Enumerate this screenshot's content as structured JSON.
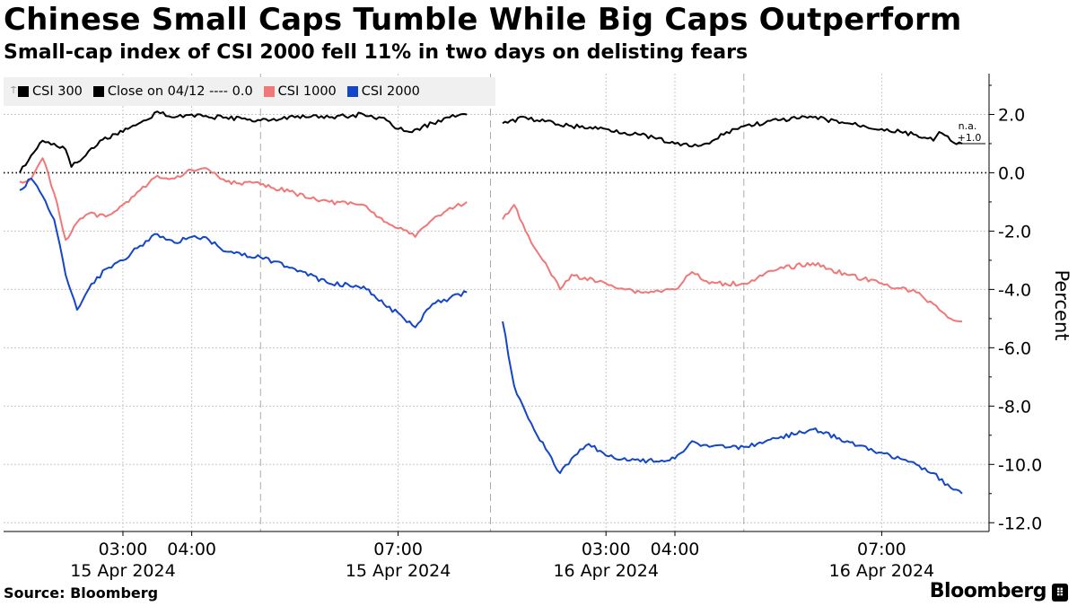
{
  "title": "Chinese Small Caps Tumble While Big Caps Outperform",
  "subtitle": "Small-cap index of CSI 2000 fell 11% in two days on delisting fears",
  "source": "Source: Bloomberg",
  "brand": "Bloomberg",
  "legend": {
    "csi300": "CSI 300",
    "close": "Close on 04/12 ---- 0.0",
    "csi1000": "CSI 1000",
    "csi2000": "CSI 2000"
  },
  "colors": {
    "csi300": "#000000",
    "csi1000": "#f07878",
    "csi2000": "#1446c8",
    "grid": "#c8c8c8",
    "legend_bg": "#f0f0f0"
  },
  "chart_data": {
    "type": "line",
    "ylabel": "Percent",
    "ylim": [
      -12.3,
      3.4
    ],
    "yticks": [
      2.0,
      0.0,
      -2.0,
      -4.0,
      -6.0,
      -8.0,
      -10.0,
      -12.0
    ],
    "ytick_labels": [
      "2.0",
      "0.0",
      "-2.0",
      "-4.0",
      "-6.0",
      "-8.0",
      "-10.0",
      "-12.0"
    ],
    "reference_line": {
      "label": "Close on 04/12",
      "value": 0.0
    },
    "x_labels": [
      {
        "time": "03:00",
        "date": "15 Apr 2024",
        "x": "2024-04-15 03:00"
      },
      {
        "time": "04:00",
        "date": "",
        "x": "2024-04-15 04:00"
      },
      {
        "time": "07:00",
        "date": "15 Apr 2024",
        "x": "2024-04-15 07:00"
      },
      {
        "time": "03:00",
        "date": "16 Apr 2024",
        "x": "2024-04-16 03:00"
      },
      {
        "time": "04:00",
        "date": "",
        "x": "2024-04-16 04:00"
      },
      {
        "time": "07:00",
        "date": "16 Apr 2024",
        "x": "2024-04-16 07:00"
      }
    ],
    "last_value_labels": [
      {
        "series": "CSI 300",
        "text": "n.a."
      },
      {
        "series": "CSI 300",
        "text": "+1.0"
      }
    ],
    "series": [
      {
        "name": "CSI 300",
        "color": "#000000",
        "sessions": [
          [
            [
              "2024-04-15 01:30",
              0.0
            ],
            [
              "2024-04-15 01:40",
              0.6
            ],
            [
              "2024-04-15 01:50",
              1.1
            ],
            [
              "2024-04-15 02:00",
              1.0
            ],
            [
              "2024-04-15 02:10",
              0.8
            ],
            [
              "2024-04-15 02:15",
              0.2
            ],
            [
              "2024-04-15 02:25",
              0.5
            ],
            [
              "2024-04-15 02:40",
              1.1
            ],
            [
              "2024-04-15 03:00",
              1.4
            ],
            [
              "2024-04-15 03:20",
              1.8
            ],
            [
              "2024-04-15 03:30",
              2.1
            ],
            [
              "2024-04-15 03:45",
              1.9
            ],
            [
              "2024-04-15 04:00",
              2.0
            ],
            [
              "2024-04-15 04:15",
              1.9
            ],
            [
              "2024-04-15 04:30",
              1.9
            ],
            [
              "2024-04-15 05:00",
              1.8
            ],
            [
              "2024-04-15 05:30",
              1.9
            ],
            [
              "2024-04-15 06:00",
              1.9
            ],
            [
              "2024-04-15 06:30",
              2.0
            ],
            [
              "2024-04-15 06:50",
              1.8
            ],
            [
              "2024-04-15 07:00",
              1.5
            ],
            [
              "2024-04-15 07:10",
              1.4
            ],
            [
              "2024-04-15 07:30",
              1.7
            ],
            [
              "2024-04-15 07:45",
              1.9
            ],
            [
              "2024-04-15 08:00",
              2.0
            ]
          ],
          [
            [
              "2024-04-16 01:30",
              1.7
            ],
            [
              "2024-04-16 01:50",
              1.9
            ],
            [
              "2024-04-16 02:00",
              1.8
            ],
            [
              "2024-04-16 02:30",
              1.6
            ],
            [
              "2024-04-16 03:00",
              1.5
            ],
            [
              "2024-04-16 03:30",
              1.3
            ],
            [
              "2024-04-16 04:00",
              1.0
            ],
            [
              "2024-04-16 04:15",
              0.9
            ],
            [
              "2024-04-16 04:30",
              1.0
            ],
            [
              "2024-04-16 04:45",
              1.4
            ],
            [
              "2024-04-16 05:00",
              1.6
            ],
            [
              "2024-04-16 05:30",
              1.8
            ],
            [
              "2024-04-16 06:00",
              1.9
            ],
            [
              "2024-04-16 06:30",
              1.7
            ],
            [
              "2024-04-16 07:00",
              1.5
            ],
            [
              "2024-04-16 07:30",
              1.3
            ],
            [
              "2024-04-16 07:45",
              1.1
            ],
            [
              "2024-04-16 07:50",
              1.4
            ],
            [
              "2024-04-16 08:00",
              1.1
            ],
            [
              "2024-04-16 08:10",
              1.0
            ]
          ]
        ]
      },
      {
        "name": "CSI 1000",
        "color": "#f07878",
        "sessions": [
          [
            [
              "2024-04-15 01:30",
              -0.3
            ],
            [
              "2024-04-15 01:40",
              -0.2
            ],
            [
              "2024-04-15 01:50",
              0.5
            ],
            [
              "2024-04-15 02:00",
              -0.7
            ],
            [
              "2024-04-15 02:10",
              -2.3
            ],
            [
              "2024-04-15 02:20",
              -1.7
            ],
            [
              "2024-04-15 02:30",
              -1.4
            ],
            [
              "2024-04-15 02:45",
              -1.5
            ],
            [
              "2024-04-15 03:00",
              -1.1
            ],
            [
              "2024-04-15 03:15",
              -0.6
            ],
            [
              "2024-04-15 03:30",
              -0.1
            ],
            [
              "2024-04-15 03:45",
              -0.2
            ],
            [
              "2024-04-15 04:00",
              0.1
            ],
            [
              "2024-04-15 04:15",
              0.1
            ],
            [
              "2024-04-15 04:30",
              -0.3
            ],
            [
              "2024-04-15 05:00",
              -0.4
            ],
            [
              "2024-04-15 05:30",
              -0.7
            ],
            [
              "2024-04-15 06:00",
              -1.0
            ],
            [
              "2024-04-15 06:30",
              -1.1
            ],
            [
              "2024-04-15 06:50",
              -1.7
            ],
            [
              "2024-04-15 07:00",
              -1.9
            ],
            [
              "2024-04-15 07:15",
              -2.2
            ],
            [
              "2024-04-15 07:30",
              -1.6
            ],
            [
              "2024-04-15 07:45",
              -1.2
            ],
            [
              "2024-04-15 08:00",
              -1.0
            ]
          ],
          [
            [
              "2024-04-16 01:30",
              -1.6
            ],
            [
              "2024-04-16 01:40",
              -1.1
            ],
            [
              "2024-04-16 01:50",
              -2.0
            ],
            [
              "2024-04-16 02:00",
              -2.7
            ],
            [
              "2024-04-16 02:10",
              -3.3
            ],
            [
              "2024-04-16 02:20",
              -4.0
            ],
            [
              "2024-04-16 02:30",
              -3.5
            ],
            [
              "2024-04-16 03:00",
              -3.8
            ],
            [
              "2024-04-16 03:30",
              -4.1
            ],
            [
              "2024-04-16 04:00",
              -4.0
            ],
            [
              "2024-04-16 04:15",
              -3.4
            ],
            [
              "2024-04-16 04:30",
              -3.8
            ],
            [
              "2024-04-16 05:00",
              -3.8
            ],
            [
              "2024-04-16 05:30",
              -3.3
            ],
            [
              "2024-04-16 06:00",
              -3.1
            ],
            [
              "2024-04-16 06:30",
              -3.5
            ],
            [
              "2024-04-16 07:00",
              -3.8
            ],
            [
              "2024-04-16 07:30",
              -4.1
            ],
            [
              "2024-04-16 07:45",
              -4.5
            ],
            [
              "2024-04-16 08:00",
              -5.0
            ],
            [
              "2024-04-16 08:10",
              -5.1
            ]
          ]
        ]
      },
      {
        "name": "CSI 2000",
        "color": "#1446c8",
        "sessions": [
          [
            [
              "2024-04-15 01:30",
              -0.6
            ],
            [
              "2024-04-15 01:40",
              -0.2
            ],
            [
              "2024-04-15 01:50",
              -0.8
            ],
            [
              "2024-04-15 02:00",
              -1.6
            ],
            [
              "2024-04-15 02:10",
              -3.5
            ],
            [
              "2024-04-15 02:20",
              -4.7
            ],
            [
              "2024-04-15 02:30",
              -4.0
            ],
            [
              "2024-04-15 02:45",
              -3.3
            ],
            [
              "2024-04-15 03:00",
              -3.0
            ],
            [
              "2024-04-15 03:15",
              -2.5
            ],
            [
              "2024-04-15 03:30",
              -2.1
            ],
            [
              "2024-04-15 03:45",
              -2.4
            ],
            [
              "2024-04-15 04:00",
              -2.2
            ],
            [
              "2024-04-15 04:15",
              -2.3
            ],
            [
              "2024-04-15 04:30",
              -2.7
            ],
            [
              "2024-04-15 05:00",
              -2.9
            ],
            [
              "2024-04-15 05:30",
              -3.3
            ],
            [
              "2024-04-15 06:00",
              -3.8
            ],
            [
              "2024-04-15 06:30",
              -3.9
            ],
            [
              "2024-04-15 06:50",
              -4.6
            ],
            [
              "2024-04-15 07:00",
              -4.8
            ],
            [
              "2024-04-15 07:15",
              -5.3
            ],
            [
              "2024-04-15 07:30",
              -4.5
            ],
            [
              "2024-04-15 07:45",
              -4.3
            ],
            [
              "2024-04-15 08:00",
              -4.1
            ]
          ],
          [
            [
              "2024-04-16 01:30",
              -5.1
            ],
            [
              "2024-04-16 01:40",
              -7.3
            ],
            [
              "2024-04-16 01:50",
              -8.2
            ],
            [
              "2024-04-16 02:00",
              -9.0
            ],
            [
              "2024-04-16 02:10",
              -9.6
            ],
            [
              "2024-04-16 02:20",
              -10.3
            ],
            [
              "2024-04-16 02:30",
              -9.8
            ],
            [
              "2024-04-16 02:45",
              -9.3
            ],
            [
              "2024-04-16 03:00",
              -9.7
            ],
            [
              "2024-04-16 03:30",
              -9.9
            ],
            [
              "2024-04-16 04:00",
              -9.8
            ],
            [
              "2024-04-16 04:15",
              -9.2
            ],
            [
              "2024-04-16 04:30",
              -9.4
            ],
            [
              "2024-04-16 05:00",
              -9.4
            ],
            [
              "2024-04-16 05:30",
              -9.1
            ],
            [
              "2024-04-16 06:00",
              -8.8
            ],
            [
              "2024-04-16 06:30",
              -9.2
            ],
            [
              "2024-04-16 07:00",
              -9.6
            ],
            [
              "2024-04-16 07:30",
              -10.0
            ],
            [
              "2024-04-16 07:45",
              -10.3
            ],
            [
              "2024-04-16 08:00",
              -10.8
            ],
            [
              "2024-04-16 08:10",
              -11.0
            ]
          ]
        ]
      }
    ]
  }
}
